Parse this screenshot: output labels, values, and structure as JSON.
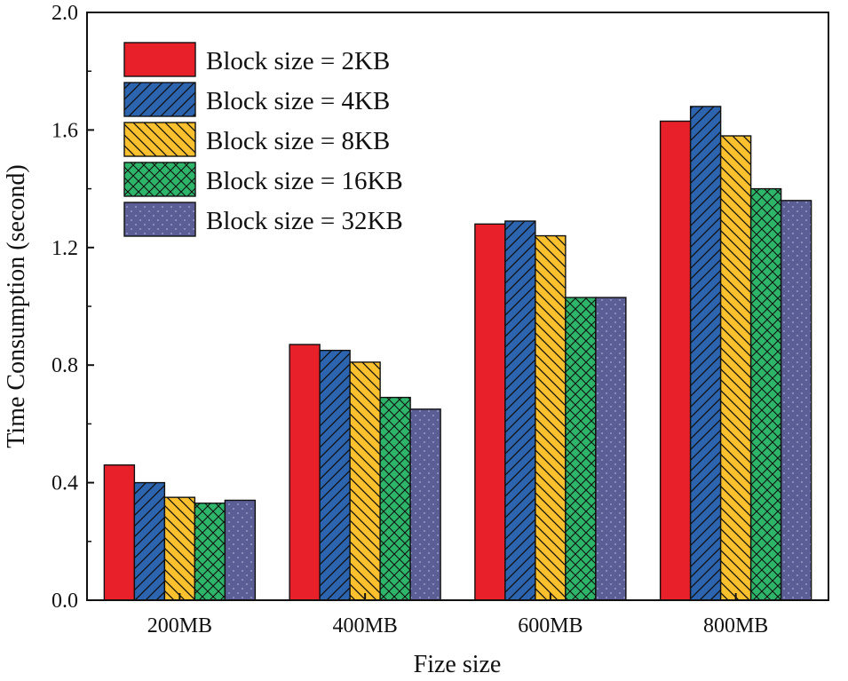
{
  "chart_data": {
    "type": "bar",
    "title": "",
    "xlabel": "Fize size",
    "ylabel": "Time Consumption (second)",
    "ylim": [
      0.0,
      2.0
    ],
    "yticks": [
      "0.0",
      "0.4",
      "0.8",
      "1.2",
      "1.6",
      "2.0"
    ],
    "ytick_values": [
      0.0,
      0.4,
      0.8,
      1.2,
      1.6,
      2.0
    ],
    "categories": [
      "200MB",
      "400MB",
      "600MB",
      "800MB"
    ],
    "legend_position": "top-left",
    "series": [
      {
        "name": "Block size = 2KB",
        "values": [
          0.46,
          0.87,
          1.28,
          1.63
        ],
        "color": "#e8202a",
        "pattern": "solid"
      },
      {
        "name": "Block size = 4KB",
        "values": [
          0.4,
          0.85,
          1.29,
          1.68
        ],
        "color": "#2c64b0",
        "pattern": "diagonal-right"
      },
      {
        "name": "Block size = 8KB",
        "values": [
          0.35,
          0.81,
          1.24,
          1.58
        ],
        "color": "#fbc02d",
        "pattern": "diagonal-left"
      },
      {
        "name": "Block size = 16KB",
        "values": [
          0.33,
          0.69,
          1.03,
          1.4
        ],
        "color": "#2db56a",
        "pattern": "crosshatch"
      },
      {
        "name": "Block size = 32KB",
        "values": [
          0.34,
          0.65,
          1.03,
          1.36
        ],
        "color": "#5b5e95",
        "pattern": "dots"
      }
    ]
  }
}
